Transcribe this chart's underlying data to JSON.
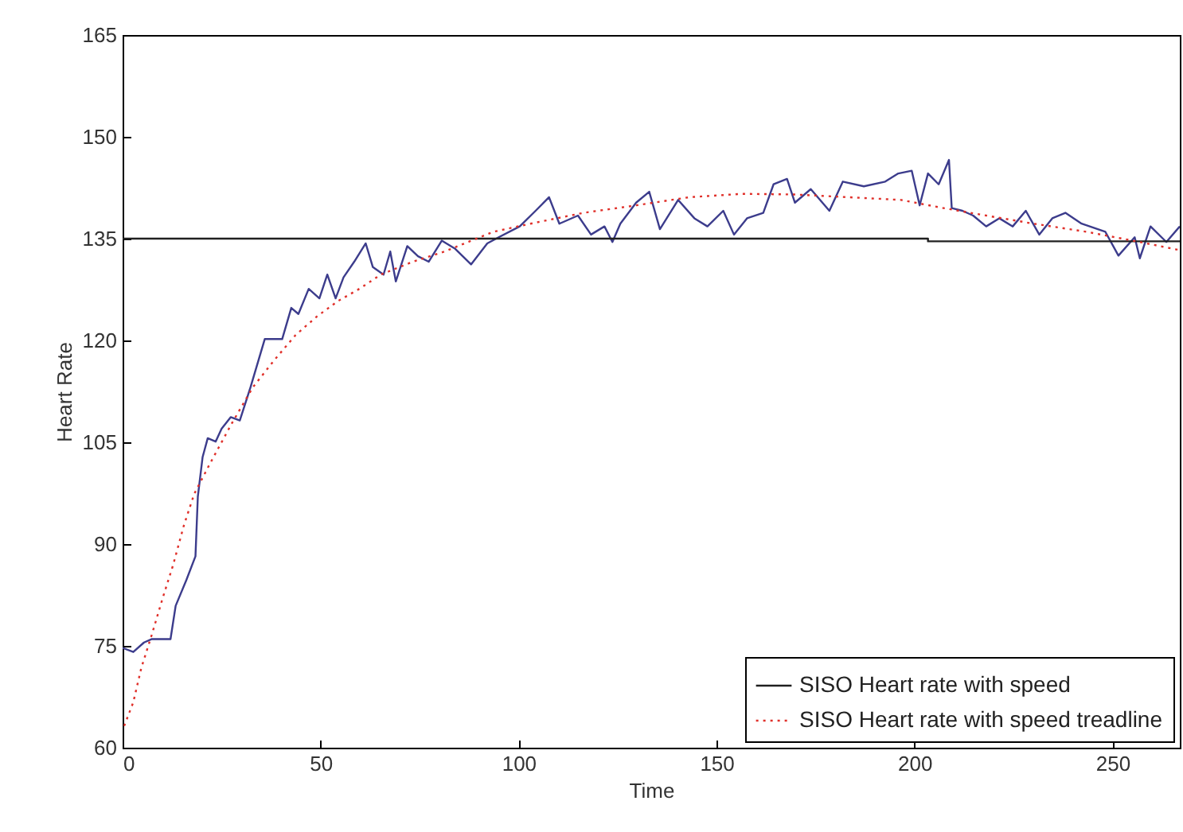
{
  "chart_data": {
    "type": "line",
    "xlabel": "Time",
    "ylabel": "Heart Rate",
    "xlim": [
      0,
      267
    ],
    "ylim": [
      60,
      165
    ],
    "xticks": [
      0,
      50,
      100,
      150,
      200,
      250
    ],
    "yticks": [
      60,
      75,
      90,
      105,
      120,
      135,
      150,
      165
    ],
    "grid": false,
    "legend": "bottom right",
    "series": [
      {
        "color": "#3c3c8c",
        "line_style": "solid",
        "x": [
          0,
          2.7,
          5.4,
          7.4,
          12.1,
          13.4,
          16.1,
          18.4,
          19,
          20.2,
          21.5,
          23.5,
          25,
          27.3,
          29.6,
          32.3,
          35.9,
          40.3,
          42.6,
          44.4,
          47,
          49.7,
          51.7,
          53.8,
          55.8,
          58.5,
          61.4,
          63.2,
          65.9,
          67.6,
          69,
          71.9,
          74.6,
          77.3,
          80.6,
          84,
          88,
          92.1,
          95,
          100.3,
          104.3,
          107.7,
          110.3,
          115,
          118.3,
          121.7,
          123.7,
          125.7,
          129.7,
          133,
          135.7,
          140.3,
          144.4,
          147.7,
          151.7,
          154.4,
          157.7,
          161.8,
          164.4,
          167.8,
          169.8,
          173.8,
          178.5,
          181.9,
          187.2,
          192.6,
          195.9,
          199.3,
          201.3,
          203.4,
          206.1,
          208.7,
          209.4,
          212.1,
          214.8,
          218.1,
          221.4,
          224.8,
          228.1,
          231.5,
          234.8,
          238.1,
          242.2,
          248.2,
          251.5,
          255.6,
          256.9,
          259.6,
          263.6,
          267
        ],
        "values": [
          74.7,
          74.1,
          75.5,
          76,
          76,
          80.9,
          84.7,
          88.2,
          97,
          102.8,
          105.6,
          105.1,
          107,
          108.7,
          108.2,
          113.1,
          120.2,
          120.2,
          124.8,
          123.9,
          127.6,
          126.2,
          129.7,
          126.2,
          129.3,
          131.6,
          134.3,
          130.8,
          129.7,
          133.1,
          128.7,
          133.9,
          132.4,
          131.6,
          134.7,
          133.5,
          131.2,
          134.3,
          135.2,
          136.8,
          139.1,
          141.1,
          137.2,
          138.4,
          135.6,
          136.8,
          134.5,
          137.2,
          140.3,
          141.9,
          136.4,
          140.7,
          138,
          136.8,
          139.1,
          135.6,
          138,
          138.8,
          143,
          143.8,
          140.3,
          142.3,
          139.1,
          143.4,
          142.7,
          143.4,
          144.6,
          145,
          139.9,
          144.6,
          143,
          146.6,
          139.5,
          139.1,
          138.4,
          136.8,
          138,
          136.8,
          139.1,
          135.6,
          138,
          138.8,
          137.2,
          136,
          132.5,
          135.2,
          132.1,
          136.8,
          134.5,
          136.8
        ]
      },
      {
        "name": "SISO Heart rate with speed",
        "color": "#202020",
        "line_style": "solid",
        "x": [
          0,
          203.4,
          203.4,
          267
        ],
        "values": [
          135,
          135,
          134.6,
          134.6
        ]
      },
      {
        "name": "SISO Heart rate with speed treadline",
        "color": "#e0302a",
        "line_style": "dotted",
        "x": [
          0.4,
          2.7,
          4.7,
          7.4,
          10.1,
          12.8,
          15.5,
          18.1,
          22.2,
          27.6,
          32.9,
          38.3,
          43.7,
          49,
          54.4,
          59.8,
          65.2,
          73.3,
          81.3,
          93.6,
          103,
          116.4,
          129.7,
          143.1,
          156.5,
          169.9,
          183.3,
          196.6,
          207.3,
          218.1,
          230.1,
          243.5,
          256.9,
          267
        ],
        "values": [
          63.2,
          66.7,
          71.7,
          76.7,
          82,
          87,
          92.8,
          97.4,
          102,
          107.8,
          113.1,
          117.1,
          120.8,
          123.5,
          125.8,
          127.6,
          129.7,
          131.6,
          133.1,
          136,
          137.2,
          138.8,
          139.9,
          141.1,
          141.6,
          141.5,
          141.1,
          140.7,
          139.5,
          138.4,
          137.2,
          136,
          134.5,
          133.3
        ]
      }
    ]
  }
}
